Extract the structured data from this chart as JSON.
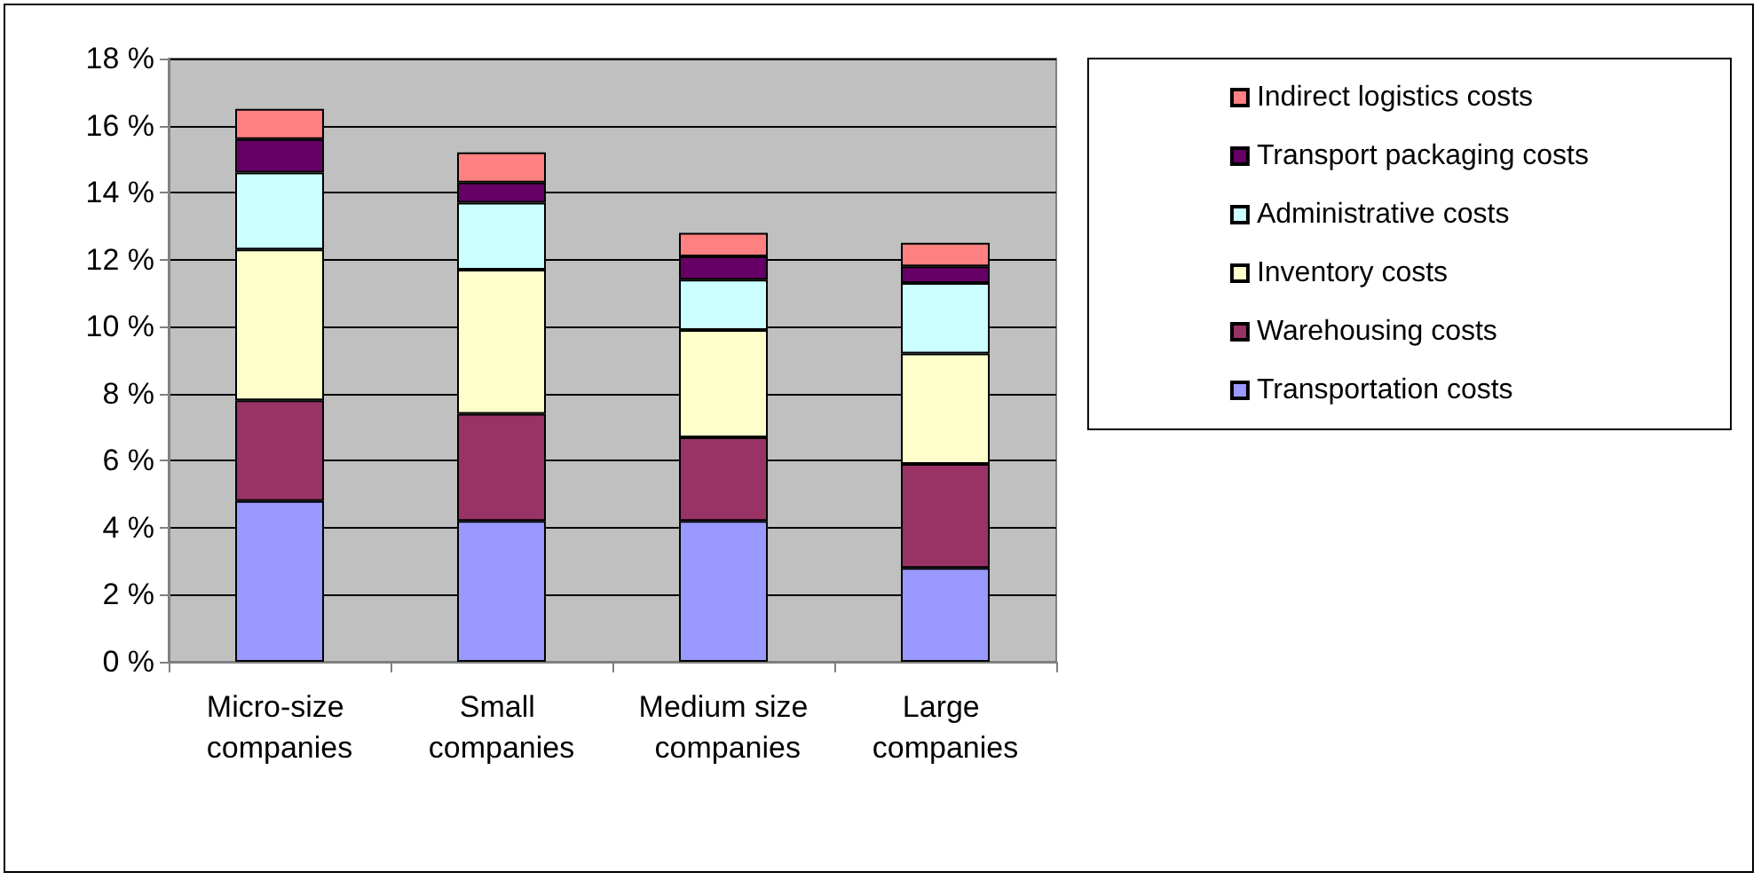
{
  "chart_data": {
    "type": "bar",
    "stacked": true,
    "categories": [
      "Micro-size companies",
      "Small companies",
      "Medium size companies",
      "Large companies"
    ],
    "series": [
      {
        "name": "Transportation costs",
        "color": "#9999ff",
        "values": [
          4.8,
          4.2,
          4.2,
          2.8
        ]
      },
      {
        "name": "Warehousing costs",
        "color": "#993366",
        "values": [
          3.0,
          3.2,
          2.5,
          3.1
        ]
      },
      {
        "name": "Inventory costs",
        "color": "#ffffcc",
        "values": [
          4.5,
          4.3,
          3.2,
          3.3
        ]
      },
      {
        "name": "Administrative costs",
        "color": "#ccffff",
        "values": [
          2.3,
          2.0,
          1.5,
          2.1
        ]
      },
      {
        "name": "Transport packaging costs",
        "color": "#660066",
        "values": [
          1.0,
          0.6,
          0.7,
          0.5
        ]
      },
      {
        "name": "Indirect logistics costs",
        "color": "#ff8080",
        "values": [
          0.9,
          0.9,
          0.7,
          0.7
        ]
      }
    ],
    "ylim": [
      0,
      18
    ],
    "yticks": [
      {
        "value": 0,
        "label": "0 %"
      },
      {
        "value": 2,
        "label": "2 %"
      },
      {
        "value": 4,
        "label": "4 %"
      },
      {
        "value": 6,
        "label": "6 %"
      },
      {
        "value": 8,
        "label": "8 %"
      },
      {
        "value": 10,
        "label": "10 %"
      },
      {
        "value": 12,
        "label": "12 %"
      },
      {
        "value": 14,
        "label": "14 %"
      },
      {
        "value": 16,
        "label": "16 %"
      },
      {
        "value": 18,
        "label": "18 %"
      }
    ],
    "grid": "y",
    "legend": "top right"
  }
}
